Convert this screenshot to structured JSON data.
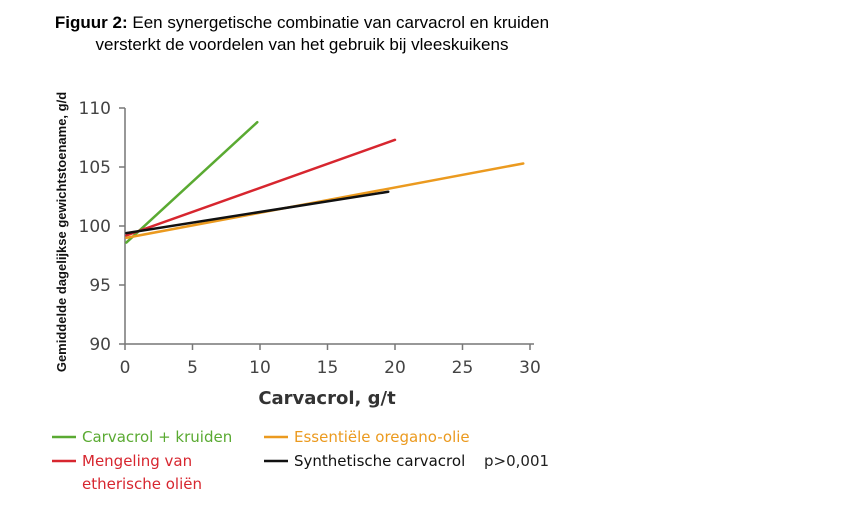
{
  "figure": {
    "label": "Figuur 2:",
    "title": "Een synergetische combinatie van carvacrol en kruiden versterkt de voordelen van het gebruik bij vleeskuikens"
  },
  "chart_data": {
    "type": "line",
    "xlabel": "Carvacrol, g/t",
    "ylabel": "Gemiddelde dagelijkse gewichtstoename, g/d",
    "xlim": [
      0,
      30
    ],
    "ylim": [
      90,
      110
    ],
    "xticks": [
      "0",
      "5",
      "10",
      "15",
      "20",
      "25",
      "30"
    ],
    "yticks": [
      "90",
      "95",
      "100",
      "105",
      "110"
    ],
    "grid": false,
    "legend_position": "bottom",
    "series": [
      {
        "name": "Carvacrol + kruiden",
        "color": "#5aaa32",
        "x": [
          0.1,
          9.8
        ],
        "y": [
          98.6,
          108.8
        ]
      },
      {
        "name": "Mengeling van etherische oliën",
        "color": "#d7262f",
        "x": [
          0.1,
          20.0
        ],
        "y": [
          99.2,
          107.3
        ]
      },
      {
        "name": "Essentiële oregano-olie",
        "color": "#eb9a1f",
        "x": [
          0.1,
          29.5
        ],
        "y": [
          99.0,
          105.3
        ]
      },
      {
        "name": "Synthetische carvacrol",
        "color": "#111111",
        "x": [
          0.1,
          19.5
        ],
        "y": [
          99.4,
          102.9
        ]
      }
    ],
    "legend": {
      "green": "Carvacrol + kruiden",
      "orange": "Essentiële oregano-olie",
      "red_line1": "Mengeling van",
      "red_line2": "etherische oliën",
      "black": "Synthetische carvacrol"
    },
    "note": "p>0,001"
  }
}
